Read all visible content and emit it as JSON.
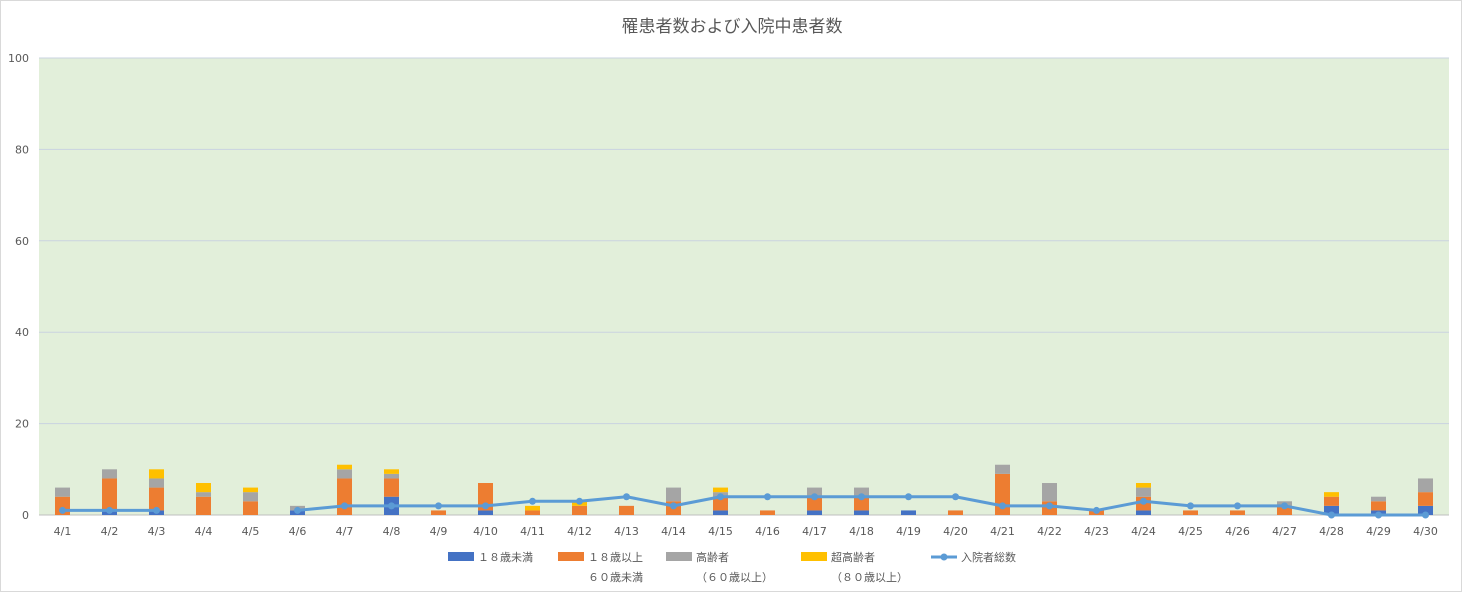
{
  "chart_data": {
    "type": "bar",
    "stacked": true,
    "title": "罹患者数および入院中患者数",
    "xlabel": "",
    "ylabel": "",
    "ylim": [
      0,
      100
    ],
    "yticks": [
      0,
      20,
      40,
      60,
      80,
      100
    ],
    "grid": true,
    "plot_background": "#e2efda",
    "legend_position": "bottom",
    "categories": [
      "4/1",
      "4/2",
      "4/3",
      "4/4",
      "4/5",
      "4/6",
      "4/7",
      "4/8",
      "4/9",
      "4/10",
      "4/11",
      "4/12",
      "4/13",
      "4/14",
      "4/15",
      "4/16",
      "4/17",
      "4/18",
      "4/19",
      "4/20",
      "4/21",
      "4/22",
      "4/23",
      "4/24",
      "4/25",
      "4/26",
      "4/27",
      "4/28",
      "4/29",
      "4/30"
    ],
    "series": [
      {
        "name": "１８歳未満",
        "type": "bar",
        "color": "#4472c4",
        "values": [
          0,
          1,
          1,
          0,
          0,
          1,
          0,
          4,
          0,
          1,
          0,
          0,
          0,
          0,
          1,
          0,
          1,
          1,
          1,
          0,
          0,
          0,
          0,
          1,
          0,
          0,
          0,
          2,
          1,
          2
        ]
      },
      {
        "name": "１８歳以上",
        "name_line2": "６０歳未満",
        "type": "bar",
        "color": "#ed7d31",
        "values": [
          4,
          7,
          5,
          4,
          3,
          0,
          8,
          4,
          1,
          6,
          1,
          2,
          2,
          3,
          3,
          1,
          3,
          3,
          0,
          1,
          9,
          3,
          1,
          3,
          1,
          1,
          2,
          2,
          2,
          3
        ]
      },
      {
        "name": "高齢者",
        "name_line2": "（６０歳以上）",
        "type": "bar",
        "color": "#a5a5a5",
        "values": [
          2,
          2,
          2,
          1,
          2,
          1,
          2,
          1,
          0,
          0,
          0,
          0,
          0,
          3,
          1,
          0,
          2,
          2,
          0,
          0,
          2,
          4,
          0,
          2,
          0,
          0,
          1,
          0,
          1,
          3
        ]
      },
      {
        "name": "超高齢者",
        "name_line2": "（８０歳以上）",
        "type": "bar",
        "color": "#ffc000",
        "values": [
          0,
          0,
          2,
          2,
          1,
          0,
          1,
          1,
          0,
          0,
          1,
          1,
          0,
          0,
          1,
          0,
          0,
          0,
          0,
          0,
          0,
          0,
          0,
          1,
          0,
          0,
          0,
          1,
          0,
          0
        ]
      },
      {
        "name": "入院者総数",
        "type": "line",
        "color": "#5b9bd5",
        "values": [
          1,
          1,
          1,
          null,
          null,
          1,
          2,
          2,
          2,
          2,
          3,
          3,
          4,
          2,
          4,
          4,
          4,
          4,
          4,
          4,
          2,
          2,
          1,
          3,
          2,
          2,
          2,
          0,
          0,
          0
        ]
      }
    ]
  }
}
